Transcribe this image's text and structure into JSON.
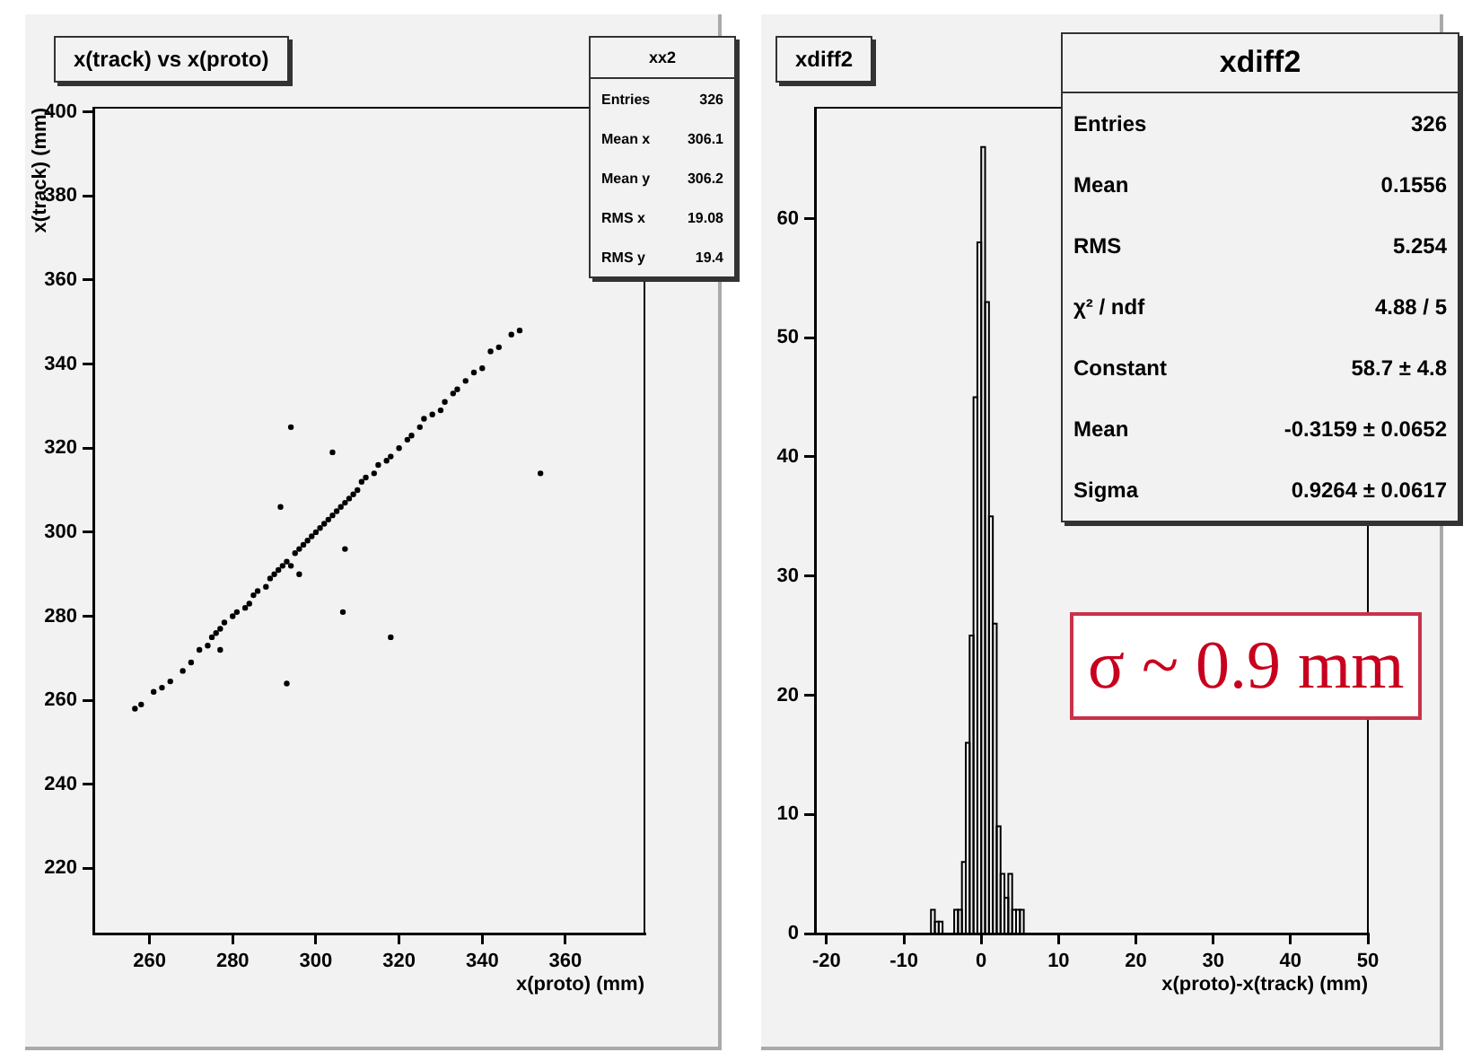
{
  "chart_data": [
    {
      "type": "scatter",
      "title": "x(track) vs x(proto)",
      "xlabel": "x(proto) (mm)",
      "ylabel": "x(track) (mm)",
      "x": [
        256.5,
        258,
        261,
        263,
        265,
        268,
        270,
        272,
        274,
        275,
        276,
        277,
        278,
        280,
        281,
        283,
        284,
        285,
        286,
        288,
        289,
        290,
        291,
        292,
        293,
        294,
        295,
        296,
        297,
        298,
        299,
        300,
        301,
        302,
        303,
        304,
        305,
        306,
        307,
        308,
        309,
        310,
        311,
        312,
        314,
        315,
        317,
        318,
        320,
        322,
        323,
        325,
        326,
        328,
        330,
        331,
        333,
        334,
        336,
        338,
        340,
        342,
        344,
        347,
        349,
        294,
        304,
        291.5,
        306.5,
        318,
        293,
        354,
        277,
        296,
        307
      ],
      "values": [
        258,
        259,
        262,
        263,
        264.5,
        267,
        269,
        272,
        273,
        275,
        276,
        277,
        278.5,
        280,
        281,
        282,
        283,
        285,
        286,
        287,
        289,
        290,
        291,
        292,
        293,
        292,
        295,
        296,
        297,
        298,
        299,
        300,
        301,
        302,
        303,
        304,
        305,
        306,
        307,
        308,
        309,
        310,
        312,
        313,
        314,
        316,
        317,
        318,
        320,
        322,
        323,
        325,
        327,
        328,
        329,
        331,
        333,
        334,
        336,
        338,
        339,
        343,
        344,
        347,
        348,
        325,
        319,
        306,
        281,
        275,
        264,
        314,
        272,
        290,
        296
      ],
      "color": "#000000",
      "marker": "circle",
      "xlim": [
        246.5,
        379
      ],
      "ylim": [
        204.5,
        401
      ],
      "xticks": [
        260,
        280,
        300,
        320,
        340,
        360
      ],
      "yticks": [
        220,
        240,
        260,
        280,
        300,
        320,
        340,
        360,
        380,
        400
      ],
      "grid": false,
      "legend": false,
      "annotations": [
        "xx2",
        "Entries\t326",
        "Mean x\t306.1",
        "Mean y\t306.2",
        "RMS x\t19.08",
        "RMS y\t19.4"
      ]
    },
    {
      "type": "histogram",
      "title": "xdiff2",
      "xlabel": "x(proto)-x(track) (mm)",
      "bins": [
        -7,
        -6.5,
        -6,
        -5.5,
        -5,
        -4.5,
        -4,
        -3.5,
        -3,
        -2.5,
        -2,
        -1.5,
        -1,
        -0.5,
        0,
        0.5,
        1,
        1.5,
        2,
        2.5,
        3,
        3.5,
        4,
        4.5,
        5,
        5.5,
        6
      ],
      "values": [
        0,
        2,
        1,
        1,
        0,
        0,
        0,
        2,
        2,
        6,
        16,
        25,
        45,
        58,
        66,
        53,
        35,
        26,
        9,
        5,
        3,
        5,
        2,
        2,
        2,
        0
      ],
      "color": "#000000",
      "xlim": [
        -21.5,
        50
      ],
      "ylim": [
        0,
        69.3
      ],
      "xticks": [
        -20,
        -10,
        0,
        10,
        20,
        30,
        40,
        50
      ],
      "yticks": [
        0,
        10,
        20,
        30,
        40,
        50,
        60
      ],
      "grid": false,
      "legend": false,
      "annotations": [
        "xdiff2",
        "Entries\t326",
        "Mean\t0.1556",
        "RMS\t5.254",
        "χ² / ndf\t4.88 / 5",
        "Constant\t58.7 ± 4.8",
        "Mean\t-0.3159 ± 0.0652",
        "Sigma\t0.9264 ± 0.0617",
        "σ ~ 0.9 mm"
      ]
    }
  ]
}
